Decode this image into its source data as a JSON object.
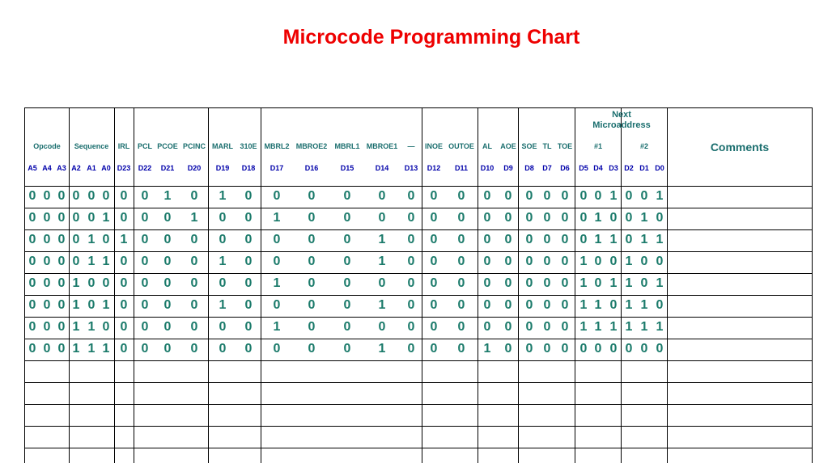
{
  "title": "Microcode Programming Chart",
  "header": {
    "categories": [
      "Opcode",
      "Sequence",
      "IRL",
      "PCL",
      "PCOE",
      "PCINC",
      "MARL",
      "310E",
      "MBRL2",
      "MBROE2",
      "MBRL1",
      "MBROE1",
      "—",
      "INOE",
      "OUTOE",
      "AL",
      "AOE",
      "SOE",
      "TL",
      "TOE",
      "#1",
      "#2"
    ],
    "next_microaddress": "Next\nMicroaddress",
    "comments": "Comments",
    "addresses": [
      "A5",
      "A4",
      "A3",
      "A2",
      "A1",
      "A0",
      "D23",
      "D22",
      "D21",
      "D20",
      "D19",
      "D18",
      "D17",
      "D16",
      "D15",
      "D14",
      "D13",
      "D12",
      "D11",
      "D10",
      "D9",
      "D8",
      "D7",
      "D6",
      "D5",
      "D4",
      "D3",
      "D2",
      "D1",
      "D0"
    ]
  },
  "rows": [
    [
      "0",
      "0",
      "0",
      "0",
      "0",
      "0",
      "0",
      "0",
      "1",
      "0",
      "1",
      "0",
      "0",
      "0",
      "0",
      "0",
      "0",
      "0",
      "0",
      "0",
      "0",
      "0",
      "0",
      "0",
      "0",
      "0",
      "1",
      "0",
      "0",
      "1"
    ],
    [
      "0",
      "0",
      "0",
      "0",
      "0",
      "1",
      "0",
      "0",
      "0",
      "1",
      "0",
      "0",
      "1",
      "0",
      "0",
      "0",
      "0",
      "0",
      "0",
      "0",
      "0",
      "0",
      "0",
      "0",
      "0",
      "1",
      "0",
      "0",
      "1",
      "0"
    ],
    [
      "0",
      "0",
      "0",
      "0",
      "1",
      "0",
      "1",
      "0",
      "0",
      "0",
      "0",
      "0",
      "0",
      "0",
      "0",
      "1",
      "0",
      "0",
      "0",
      "0",
      "0",
      "0",
      "0",
      "0",
      "0",
      "1",
      "1",
      "0",
      "1",
      "1"
    ],
    [
      "0",
      "0",
      "0",
      "0",
      "1",
      "1",
      "0",
      "0",
      "0",
      "0",
      "1",
      "0",
      "0",
      "0",
      "0",
      "1",
      "0",
      "0",
      "0",
      "0",
      "0",
      "0",
      "0",
      "0",
      "1",
      "0",
      "0",
      "1",
      "0",
      "0"
    ],
    [
      "0",
      "0",
      "0",
      "1",
      "0",
      "0",
      "0",
      "0",
      "0",
      "0",
      "0",
      "0",
      "1",
      "0",
      "0",
      "0",
      "0",
      "0",
      "0",
      "0",
      "0",
      "0",
      "0",
      "0",
      "1",
      "0",
      "1",
      "1",
      "0",
      "1"
    ],
    [
      "0",
      "0",
      "0",
      "1",
      "0",
      "1",
      "0",
      "0",
      "0",
      "0",
      "1",
      "0",
      "0",
      "0",
      "0",
      "1",
      "0",
      "0",
      "0",
      "0",
      "0",
      "0",
      "0",
      "0",
      "1",
      "1",
      "0",
      "1",
      "1",
      "0"
    ],
    [
      "0",
      "0",
      "0",
      "1",
      "1",
      "0",
      "0",
      "0",
      "0",
      "0",
      "0",
      "0",
      "1",
      "0",
      "0",
      "0",
      "0",
      "0",
      "0",
      "0",
      "0",
      "0",
      "0",
      "0",
      "1",
      "1",
      "1",
      "1",
      "1",
      "1"
    ],
    [
      "0",
      "0",
      "0",
      "1",
      "1",
      "1",
      "0",
      "0",
      "0",
      "0",
      "0",
      "0",
      "0",
      "0",
      "0",
      "1",
      "0",
      "0",
      "0",
      "1",
      "0",
      "0",
      "0",
      "0",
      "0",
      "0",
      "0",
      "0",
      "0",
      "0"
    ]
  ]
}
